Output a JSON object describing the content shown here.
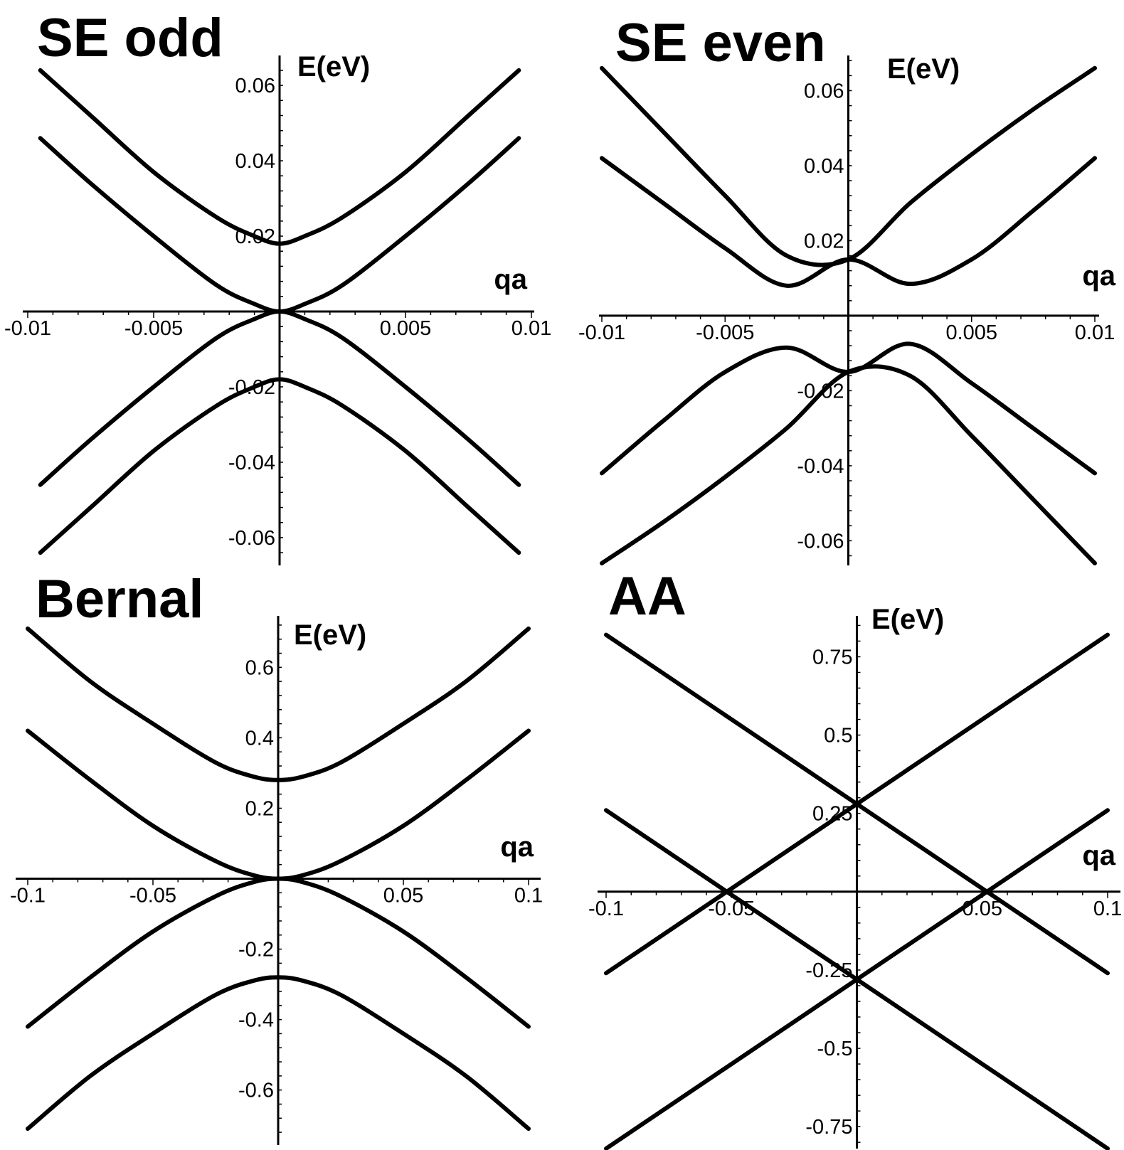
{
  "chart_data": [
    {
      "type": "line",
      "title": "SE odd",
      "xlabel": "qa",
      "ylabel": "E(eV)",
      "xlim": [
        -0.01,
        0.01
      ],
      "ylim": [
        -0.067,
        0.067
      ],
      "xticks": [
        -0.01,
        -0.005,
        0.005,
        0.01
      ],
      "xtick_labels": [
        "-0.01",
        "-0.005",
        "0.005",
        "0.01"
      ],
      "yticks": [
        0.06,
        0.04,
        0.02,
        -0.02,
        -0.04,
        -0.06
      ],
      "ytick_labels": [
        "0.06",
        "0.04",
        "0.02",
        "-0.02",
        "-0.04",
        "-0.06"
      ],
      "grid": false,
      "series": [
        {
          "x": [
            -0.0095,
            -0.0075,
            -0.005,
            -0.0025,
            -0.001,
            0,
            0.001,
            0.0025,
            0.005,
            0.0075,
            0.0095
          ],
          "y": [
            0.064,
            0.052,
            0.037,
            0.025,
            0.02,
            0.018,
            0.02,
            0.025,
            0.037,
            0.052,
            0.064
          ]
        },
        {
          "x": [
            -0.0095,
            -0.0075,
            -0.005,
            -0.0025,
            -0.001,
            0,
            0.001,
            0.0025,
            0.005,
            0.0075,
            0.0095
          ],
          "y": [
            0.046,
            0.034,
            0.02,
            0.007,
            0.002,
            0,
            0.002,
            0.007,
            0.02,
            0.034,
            0.046
          ]
        },
        {
          "x": [
            -0.0095,
            -0.0075,
            -0.005,
            -0.0025,
            -0.001,
            0,
            0.001,
            0.0025,
            0.005,
            0.0075,
            0.0095
          ],
          "y": [
            -0.046,
            -0.034,
            -0.02,
            -0.007,
            -0.002,
            0,
            -0.002,
            -0.007,
            -0.02,
            -0.034,
            -0.046
          ]
        },
        {
          "x": [
            -0.0095,
            -0.0075,
            -0.005,
            -0.0025,
            -0.001,
            0,
            0.001,
            0.0025,
            0.005,
            0.0075,
            0.0095
          ],
          "y": [
            -0.064,
            -0.052,
            -0.037,
            -0.025,
            -0.02,
            -0.018,
            -0.02,
            -0.025,
            -0.037,
            -0.052,
            -0.064
          ]
        }
      ]
    },
    {
      "type": "line",
      "title": "SE even",
      "xlabel": "qa",
      "ylabel": "E(eV)",
      "xlim": [
        -0.01,
        0.01
      ],
      "ylim": [
        -0.066,
        0.069
      ],
      "xticks": [
        -0.01,
        -0.005,
        0.005,
        0.01
      ],
      "xtick_labels": [
        "-0.01",
        "-0.005",
        "0.005",
        "0.01"
      ],
      "yticks": [
        0.06,
        0.04,
        0.02,
        -0.02,
        -0.04,
        -0.06
      ],
      "ytick_labels": [
        "0.06",
        "0.04",
        "0.02",
        "-0.02",
        "-0.04",
        "-0.06"
      ],
      "grid": false,
      "series": [
        {
          "x": [
            -0.01,
            -0.0075,
            -0.005,
            -0.0025,
            0,
            0.0025,
            0.005,
            0.0075,
            0.01
          ],
          "y": [
            0.066,
            0.049,
            0.032,
            0.016,
            0.015,
            0.03,
            0.043,
            0.055,
            0.066
          ]
        },
        {
          "x": [
            -0.01,
            -0.0075,
            -0.005,
            -0.0025,
            0,
            0.0025,
            0.005,
            0.0075,
            0.01
          ],
          "y": [
            0.042,
            0.03,
            0.018,
            0.008,
            0.015,
            0.0085,
            0.015,
            0.028,
            0.042
          ]
        },
        {
          "x": [
            -0.01,
            -0.0075,
            -0.005,
            -0.0025,
            0,
            0.0025,
            0.005,
            0.0075,
            0.01
          ],
          "y": [
            -0.042,
            -0.028,
            -0.015,
            -0.0085,
            -0.015,
            -0.0075,
            -0.018,
            -0.03,
            -0.042
          ]
        },
        {
          "x": [
            -0.01,
            -0.0075,
            -0.005,
            -0.0025,
            0,
            0.0025,
            0.005,
            0.0075,
            0.01
          ],
          "y": [
            -0.066,
            -0.055,
            -0.043,
            -0.03,
            -0.015,
            -0.016,
            -0.032,
            -0.049,
            -0.066
          ]
        }
      ]
    },
    {
      "type": "line",
      "title": "Bernal",
      "xlabel": "qa",
      "ylabel": "E(eV)",
      "xlim": [
        -0.1,
        0.1
      ],
      "ylim": [
        -0.74,
        0.74
      ],
      "xticks": [
        -0.1,
        -0.05,
        0.05,
        0.1
      ],
      "xtick_labels": [
        "-0.1",
        "-0.05",
        "0.05",
        "0.1"
      ],
      "yticks": [
        0.6,
        0.4,
        0.2,
        -0.2,
        -0.4,
        -0.6
      ],
      "ytick_labels": [
        "0.6",
        "0.4",
        "0.2",
        "-0.2",
        "-0.4",
        "-0.6"
      ],
      "grid": false,
      "series": [
        {
          "x": [
            -0.1,
            -0.075,
            -0.05,
            -0.025,
            -0.01,
            0,
            0.01,
            0.025,
            0.05,
            0.075,
            0.1
          ],
          "y": [
            0.71,
            0.56,
            0.44,
            0.33,
            0.29,
            0.28,
            0.29,
            0.33,
            0.44,
            0.56,
            0.71
          ]
        },
        {
          "x": [
            -0.1,
            -0.075,
            -0.05,
            -0.025,
            -0.01,
            0,
            0.01,
            0.025,
            0.05,
            0.075,
            0.1
          ],
          "y": [
            0.42,
            0.28,
            0.15,
            0.05,
            0.01,
            0,
            0.01,
            0.05,
            0.15,
            0.28,
            0.42
          ]
        },
        {
          "x": [
            -0.1,
            -0.075,
            -0.05,
            -0.025,
            -0.01,
            0,
            0.01,
            0.025,
            0.05,
            0.075,
            0.1
          ],
          "y": [
            -0.42,
            -0.28,
            -0.15,
            -0.05,
            -0.01,
            0,
            -0.01,
            -0.05,
            -0.15,
            -0.28,
            -0.42
          ]
        },
        {
          "x": [
            -0.1,
            -0.075,
            -0.05,
            -0.025,
            -0.01,
            0,
            0.01,
            0.025,
            0.05,
            0.075,
            0.1
          ],
          "y": [
            -0.71,
            -0.56,
            -0.44,
            -0.33,
            -0.29,
            -0.28,
            -0.29,
            -0.33,
            -0.44,
            -0.56,
            -0.71
          ]
        }
      ]
    },
    {
      "type": "line",
      "title": "AA",
      "xlabel": "qa",
      "ylabel": "E(eV)",
      "xlim": [
        -0.1,
        0.1
      ],
      "ylim": [
        -0.82,
        0.86
      ],
      "xticks": [
        -0.1,
        -0.05,
        0.05,
        0.1
      ],
      "xtick_labels": [
        "-0.1",
        "-0.05",
        "0.05",
        "0.1"
      ],
      "yticks": [
        0.75,
        0.5,
        0.25,
        -0.25,
        -0.5,
        -0.75
      ],
      "ytick_labels": [
        "0.75",
        "0.5",
        "0.25",
        "-0.25",
        "-0.5",
        "-0.75"
      ],
      "grid": false,
      "series": [
        {
          "x": [
            -0.1,
            0.1
          ],
          "y": [
            0.82,
            -0.26
          ]
        },
        {
          "x": [
            -0.1,
            0.1
          ],
          "y": [
            -0.26,
            0.82
          ]
        },
        {
          "x": [
            -0.1,
            0.1
          ],
          "y": [
            0.26,
            -0.82
          ]
        },
        {
          "x": [
            -0.1,
            0.1
          ],
          "y": [
            -0.82,
            0.26
          ]
        }
      ]
    }
  ]
}
